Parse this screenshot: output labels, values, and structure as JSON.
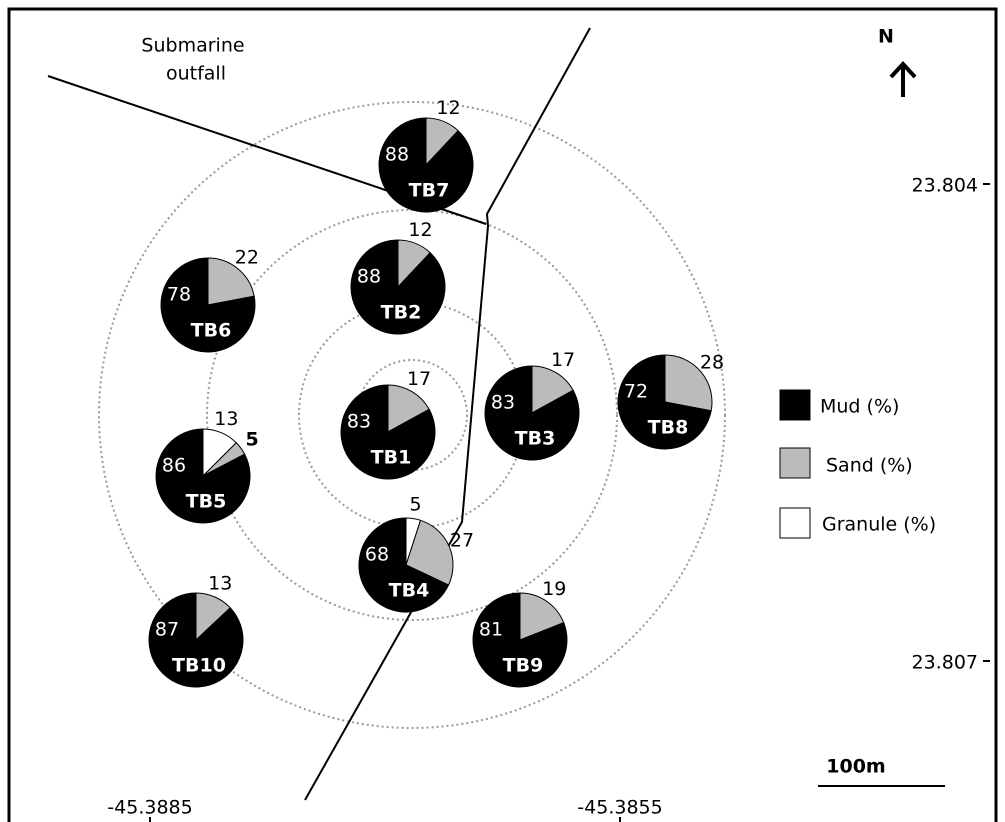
{
  "outfall_label": [
    "Submarine",
    "outfall"
  ],
  "north": "N",
  "legend": {
    "mud": "Mud (%)",
    "sand": "Sand (%)",
    "granule": "Granule (%)"
  },
  "scale": "100m",
  "lat_labels": [
    "23.804",
    "23.807"
  ],
  "lon_labels": [
    "-45.3885",
    "-45.3855"
  ],
  "stations": [
    {
      "name": "TB7",
      "mud": 88,
      "sand": 12
    },
    {
      "name": "TB2",
      "mud": 88,
      "sand": 12
    },
    {
      "name": "TB6",
      "mud": 78,
      "sand": 22
    },
    {
      "name": "TB1",
      "mud": 83,
      "sand": 17
    },
    {
      "name": "TB3",
      "mud": 83,
      "sand": 17
    },
    {
      "name": "TB8",
      "mud": 72,
      "sand": 28
    },
    {
      "name": "TB5",
      "mud": 86,
      "sand": 5,
      "granule": 13
    },
    {
      "name": "TB4",
      "mud": 68,
      "sand": 27,
      "granule": 5
    },
    {
      "name": "TB10",
      "mud": 87,
      "sand": 13
    },
    {
      "name": "TB9",
      "mud": 81,
      "sand": 19
    }
  ]
}
